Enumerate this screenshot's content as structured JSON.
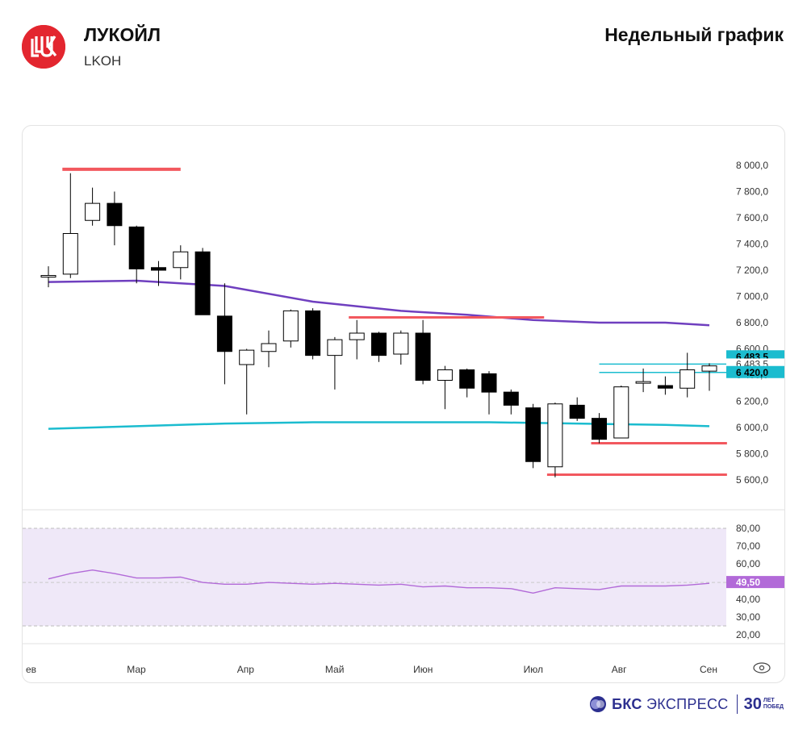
{
  "header": {
    "company": "ЛУКОЙЛ",
    "ticker": "LKOH",
    "chart_title": "Недельный график"
  },
  "footer": {
    "brand_bold": "БКС",
    "brand_light": "ЭКСПРЕСС",
    "anniv_num": "30",
    "anniv_top": "ЛЕТ",
    "anniv_bottom": "ПОБЕД"
  },
  "colors": {
    "brand_red": "#e3262f",
    "sma_fast": "#6f3fbf",
    "sma_slow": "#1bbccf",
    "levels_red": "#f2585e",
    "levels_cyan": "#1bbccf",
    "rsi_line": "#b26ad8",
    "rsi_band": "#efe8f8",
    "brand_blue": "#2c2f8f"
  },
  "chart_data": {
    "type": "candlestick",
    "timeframe": "weekly",
    "price_ylim": [
      5520,
      8080
    ],
    "price_ticks": [
      "8 000,0",
      "7 800,0",
      "7 600,0",
      "7 400,0",
      "7 200,0",
      "7 000,0",
      "6 800,0",
      "6 600,0",
      "6 400,0",
      "6 200,0",
      "6 000,0",
      "5 800,0",
      "5 600,0"
    ],
    "price_tick_values": [
      8000,
      7800,
      7600,
      7400,
      7200,
      7000,
      6800,
      6600,
      6400,
      6200,
      6000,
      5800,
      5600
    ],
    "month_labels": [
      {
        "label": "ев",
        "index": 0
      },
      {
        "label": "Мар",
        "index": 4
      },
      {
        "label": "Апр",
        "index": 9
      },
      {
        "label": "Май",
        "index": 13
      },
      {
        "label": "Июн",
        "index": 17
      },
      {
        "label": "Июл",
        "index": 22
      },
      {
        "label": "Авг",
        "index": 26
      },
      {
        "label": "Сен",
        "index": 30
      }
    ],
    "candles": [
      {
        "o": 7160,
        "h": 7230,
        "l": 7070,
        "c": 7160
      },
      {
        "o": 7170,
        "h": 7940,
        "l": 7140,
        "c": 7480
      },
      {
        "o": 7580,
        "h": 7830,
        "l": 7540,
        "c": 7710
      },
      {
        "o": 7710,
        "h": 7800,
        "l": 7390,
        "c": 7540
      },
      {
        "o": 7530,
        "h": 7540,
        "l": 7100,
        "c": 7210
      },
      {
        "o": 7220,
        "h": 7270,
        "l": 7080,
        "c": 7200
      },
      {
        "o": 7220,
        "h": 7390,
        "l": 7130,
        "c": 7340
      },
      {
        "o": 7340,
        "h": 7370,
        "l": 6860,
        "c": 6860
      },
      {
        "o": 6850,
        "h": 7100,
        "l": 6330,
        "c": 6580
      },
      {
        "o": 6480,
        "h": 6600,
        "l": 6100,
        "c": 6590
      },
      {
        "o": 6580,
        "h": 6740,
        "l": 6460,
        "c": 6640
      },
      {
        "o": 6660,
        "h": 6900,
        "l": 6610,
        "c": 6890
      },
      {
        "o": 6890,
        "h": 6910,
        "l": 6520,
        "c": 6550
      },
      {
        "o": 6550,
        "h": 6690,
        "l": 6290,
        "c": 6670
      },
      {
        "o": 6670,
        "h": 6820,
        "l": 6520,
        "c": 6720
      },
      {
        "o": 6720,
        "h": 6730,
        "l": 6500,
        "c": 6550
      },
      {
        "o": 6560,
        "h": 6740,
        "l": 6480,
        "c": 6720
      },
      {
        "o": 6720,
        "h": 6820,
        "l": 6330,
        "c": 6360
      },
      {
        "o": 6360,
        "h": 6470,
        "l": 6140,
        "c": 6440
      },
      {
        "o": 6440,
        "h": 6450,
        "l": 6230,
        "c": 6300
      },
      {
        "o": 6410,
        "h": 6430,
        "l": 6100,
        "c": 6270
      },
      {
        "o": 6270,
        "h": 6290,
        "l": 6100,
        "c": 6170
      },
      {
        "o": 6150,
        "h": 6180,
        "l": 5690,
        "c": 5740
      },
      {
        "o": 5700,
        "h": 6190,
        "l": 5620,
        "c": 6180
      },
      {
        "o": 6170,
        "h": 6230,
        "l": 6050,
        "c": 6070
      },
      {
        "o": 6070,
        "h": 6110,
        "l": 5880,
        "c": 5910
      },
      {
        "o": 5920,
        "h": 6320,
        "l": 5920,
        "c": 6310
      },
      {
        "o": 6340,
        "h": 6450,
        "l": 6270,
        "c": 6350
      },
      {
        "o": 6320,
        "h": 6390,
        "l": 6250,
        "c": 6300
      },
      {
        "o": 6300,
        "h": 6570,
        "l": 6230,
        "c": 6440
      },
      {
        "o": 6430,
        "h": 6490,
        "l": 6280,
        "c": 6470
      }
    ],
    "sma_fast": [
      [
        0,
        7110
      ],
      [
        4,
        7120
      ],
      [
        8,
        7080
      ],
      [
        12,
        6960
      ],
      [
        16,
        6890
      ],
      [
        19,
        6860
      ],
      [
        22,
        6820
      ],
      [
        25,
        6800
      ],
      [
        28,
        6800
      ],
      [
        30,
        6780
      ]
    ],
    "sma_slow": [
      [
        0,
        5990
      ],
      [
        4,
        6010
      ],
      [
        8,
        6030
      ],
      [
        12,
        6040
      ],
      [
        16,
        6040
      ],
      [
        20,
        6040
      ],
      [
        24,
        6030
      ],
      [
        28,
        6020
      ],
      [
        30,
        6010
      ]
    ],
    "levels_red": [
      {
        "price": 7970,
        "from": 1,
        "to": 6
      },
      {
        "price": 6840,
        "from": 14,
        "to": 22.5
      },
      {
        "price": 5880,
        "from": 25,
        "to": 30.8
      },
      {
        "price": 5640,
        "from": 23,
        "to": 30.8
      }
    ],
    "levels_cyan": [
      {
        "price": 6483.5,
        "from": 25,
        "to": 30.8
      },
      {
        "price": 6420,
        "from": 25,
        "to": 30.8
      }
    ],
    "price_badges": [
      {
        "label": "6 483,5",
        "price": 6540,
        "bg": "#1bbccf"
      },
      {
        "label": "6 483,5",
        "price": 6483.5,
        "bg": "none"
      },
      {
        "label": "6 420,0",
        "price": 6420,
        "bg": "#1bbccf"
      }
    ],
    "rsi": {
      "ylim": [
        15,
        85
      ],
      "ticks": [
        "80,00",
        "70,00",
        "60,00",
        "50,00",
        "40,00",
        "30,00",
        "20,00"
      ],
      "tick_values": [
        80,
        70,
        60,
        50,
        40,
        30,
        20
      ],
      "overbought": 80,
      "oversold": 25,
      "mid": 49.5,
      "current_label": "49,50",
      "values": [
        51.5,
        54.5,
        56.5,
        54.5,
        52.0,
        52.0,
        52.5,
        49.5,
        48.5,
        48.5,
        49.5,
        49.0,
        48.5,
        49.0,
        48.5,
        48.0,
        48.5,
        47.0,
        47.5,
        46.5,
        46.5,
        46.0,
        43.5,
        46.5,
        46.0,
        45.5,
        47.5,
        47.5,
        47.5,
        48.0,
        49.0
      ]
    }
  }
}
